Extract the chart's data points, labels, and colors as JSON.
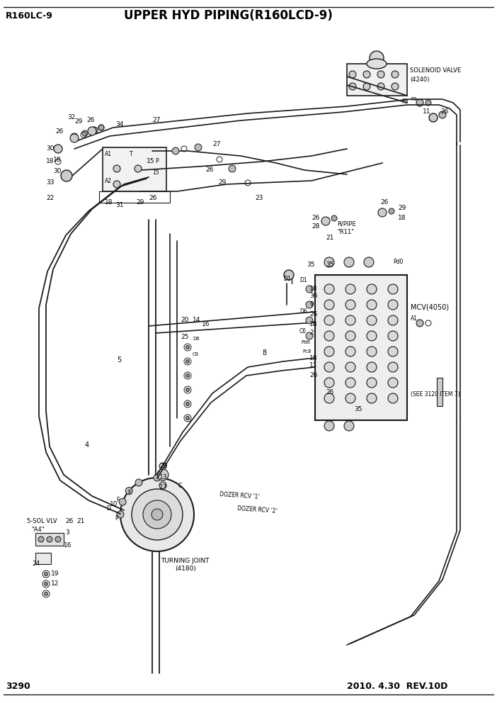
{
  "title": "UPPER HYD PIPING(R160LCD-9)",
  "model": "R160LC-9",
  "page": "3290",
  "date": "2010. 4.30  REV.10D",
  "bg_color": "#ffffff",
  "lc": "#1a1a1a",
  "tc": "#000000",
  "fig_width": 7.02,
  "fig_height": 9.92,
  "dpi": 100
}
